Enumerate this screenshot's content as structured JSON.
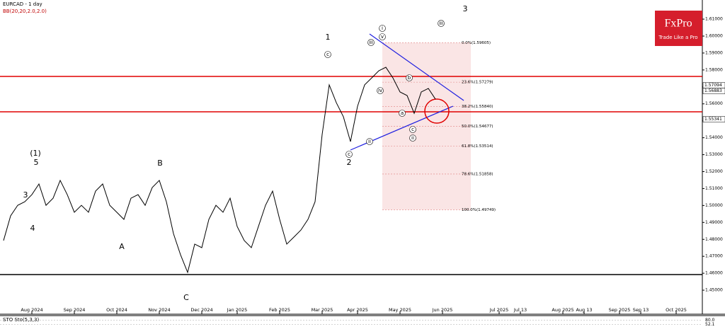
{
  "chart_data": {
    "type": "line",
    "title": "EURCAD - 1 day",
    "subtitle": "BB(20,20,2.0,2.0)",
    "logo": {
      "brand": "FxPro",
      "tagline": "Trade Like a Pro"
    },
    "categories": [
      null,
      null,
      null,
      null,
      "Aug 2024",
      null,
      null,
      null,
      null,
      null,
      "Sep 2024",
      null,
      null,
      null,
      null,
      null,
      "Oct 2024",
      null,
      null,
      null,
      null,
      null,
      "Nov 2024",
      null,
      null,
      null,
      null,
      null,
      "Dec 2024",
      null,
      null,
      null,
      null,
      "Jan 2025",
      null,
      null,
      null,
      null,
      null,
      "Feb 2025",
      null,
      null,
      null,
      null,
      null,
      "Mar 2025",
      null,
      null,
      null,
      null,
      "Apr 2025",
      null,
      null,
      null,
      null,
      null,
      "May 2025",
      null,
      null,
      null,
      null,
      null,
      "Jun 2025",
      null,
      null,
      null,
      null,
      null,
      null,
      null,
      "Jul 2025",
      null,
      null,
      "Jul 13",
      null,
      null,
      null,
      null,
      null,
      "Aug 2025",
      null,
      null,
      "Aug 13",
      null,
      null,
      null,
      null,
      "Sep 2025",
      null,
      null,
      "Sep 13",
      null,
      null,
      null,
      null,
      "Oct 2025",
      null
    ],
    "series": [
      {
        "name": "EURCAD",
        "color": "#000000",
        "values": [
          1.4793,
          1.4939,
          1.5001,
          1.5022,
          1.5064,
          1.5127,
          1.5001,
          1.5043,
          1.5148,
          1.5064,
          1.496,
          1.5001,
          1.496,
          1.5085,
          1.5127,
          1.5001,
          1.496,
          1.4918,
          1.5043,
          1.5064,
          1.5001,
          1.5106,
          1.5148,
          1.5022,
          1.4834,
          1.4709,
          1.4605,
          1.4772,
          1.4751,
          1.4918,
          1.5001,
          1.496,
          1.5043,
          1.4876,
          1.4793,
          1.4751,
          1.4876,
          1.5001,
          1.5085,
          1.4918,
          1.4772,
          1.4813,
          1.4855,
          1.4918,
          1.5022,
          1.5419,
          1.5712,
          1.5607,
          1.5524,
          1.5377,
          1.5586,
          1.5712,
          1.5753,
          1.5795,
          1.5816,
          1.5753,
          1.567,
          1.5649,
          1.5544,
          1.567,
          1.5691,
          1.5628,
          null,
          null,
          null,
          null,
          null,
          null,
          null,
          null,
          null,
          null,
          null,
          null,
          null,
          null,
          null,
          null,
          null,
          null,
          null,
          null,
          null,
          null,
          null,
          null,
          null,
          null,
          null,
          null,
          null,
          null,
          null,
          null,
          null,
          null,
          null
        ]
      }
    ],
    "ylim": [
      1.4375,
      1.6213
    ],
    "yticks": [
      {
        "value": 1.45,
        "label": "1.45000"
      },
      {
        "value": 1.46,
        "label": "1.46000"
      },
      {
        "value": 1.47,
        "label": "1.47000"
      },
      {
        "value": 1.48,
        "label": "1.48000"
      },
      {
        "value": 1.49,
        "label": "1.49000"
      },
      {
        "value": 1.5,
        "label": "1.50000"
      },
      {
        "value": 1.51,
        "label": "1.51000"
      },
      {
        "value": 1.52,
        "label": "1.52000"
      },
      {
        "value": 1.53,
        "label": "1.53000"
      },
      {
        "value": 1.54,
        "label": "1.54000"
      },
      {
        "value": 1.55,
        "label": "1.55000"
      },
      {
        "value": 1.56,
        "label": "1.56000"
      },
      {
        "value": 1.57,
        "label": "1.57000"
      },
      {
        "value": 1.58,
        "label": "1.58000"
      },
      {
        "value": 1.59,
        "label": "1.59000"
      },
      {
        "value": 1.6,
        "label": "1.60000"
      },
      {
        "value": 1.61,
        "label": "1.61000"
      }
    ],
    "levels": [
      {
        "value": 1.5762,
        "color": "#e00000"
      },
      {
        "value": 1.5553,
        "color": "#e00000"
      },
      {
        "value": 1.4592,
        "color": "#000000"
      }
    ],
    "price_tags": [
      {
        "value": 1.57094,
        "label": "1.57094"
      },
      {
        "value": 1.56883,
        "label": "1.56883"
      },
      {
        "value": 1.55341,
        "label": "1.55341"
      }
    ],
    "fibonacci": [
      {
        "value": 1.59605,
        "label": "0.0%(1.59605)"
      },
      {
        "value": 1.57279,
        "label": "23.6%(1.57279)"
      },
      {
        "value": 1.5584,
        "label": "38.2%(1.55840)"
      },
      {
        "value": 1.54677,
        "label": "50.0%(1.54677)"
      },
      {
        "value": 1.53514,
        "label": "61.8%(1.53514)"
      },
      {
        "value": 1.51858,
        "label": "78.6%(1.51858)"
      },
      {
        "value": 1.49749,
        "label": "100.0%(1.49749)"
      }
    ],
    "wave_labels": [
      "1",
      "2",
      "3",
      "(1)",
      "5",
      "3",
      "4",
      "A",
      "B",
      "C"
    ],
    "circled_labels": [
      "v",
      "iii",
      "c",
      "iv",
      "a",
      "c",
      "b",
      "iii",
      "ii",
      "c",
      "i",
      "ii"
    ],
    "indicator": {
      "label": "STO Sto(5,3,3)",
      "ylim": [
        0,
        100
      ],
      "yticks": [
        {
          "value": 80,
          "label": "80.0"
        },
        {
          "value": 52.1,
          "label": "52.1"
        }
      ]
    }
  }
}
